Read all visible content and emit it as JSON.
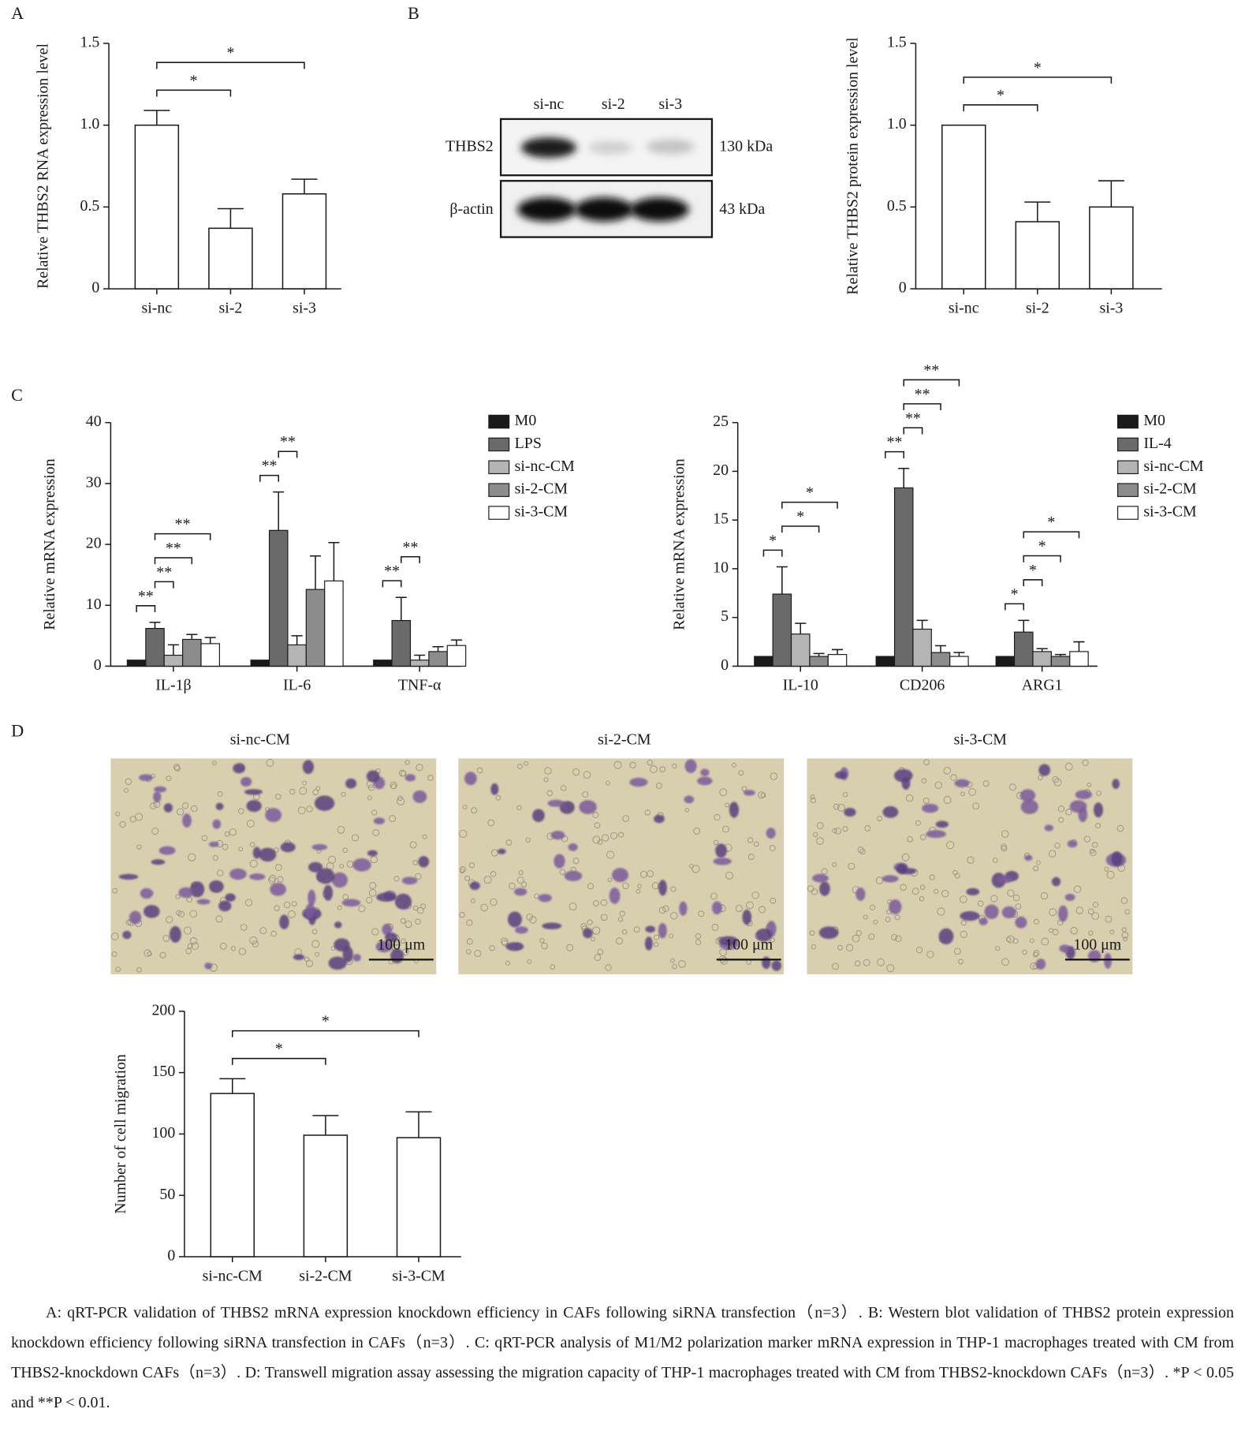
{
  "panels": [
    "A",
    "B",
    "C",
    "D"
  ],
  "blot": {
    "lanes": [
      "si-nc",
      "si-2",
      "si-3"
    ],
    "rows": [
      {
        "label": "THBS2",
        "size": "130 kDa"
      },
      {
        "label": "β-actin",
        "size": "43 kDa"
      }
    ]
  },
  "micrographs": {
    "panels": [
      "si-nc-CM",
      "si-2-CM",
      "si-3-CM"
    ],
    "scale_bar": "100 μm"
  },
  "caption": "A: qRT-PCR validation of THBS2 mRNA expression knockdown efficiency in CAFs following siRNA transfection（n=3）. B: Western blot validation of THBS2 protein expression knockdown efficiency following siRNA transfection in CAFs（n=3）. C: qRT-PCR analysis of M1/M2 polarization marker mRNA expression in THP-1 macrophages treated with CM from THBS2-knockdown CAFs（n=3）. D: Transwell migration assay assessing the migration capacity of THP-1 macrophages treated with CM from THBS2-knockdown CAFs（n=3）. *P < 0.05 and **P < 0.01.",
  "chart_data": [
    {
      "type": "bar",
      "ylabel": "Relative THBS2 RNA expression level",
      "categories": [
        "si-nc",
        "si-2",
        "si-3"
      ],
      "values": [
        1.0,
        0.37,
        0.58
      ],
      "errors": [
        0.09,
        0.12,
        0.09
      ],
      "color": "#ffffff",
      "ylim": [
        0,
        1.5
      ],
      "yticks": [
        0,
        0.5,
        {
          "value": 1,
          "label": "1.0"
        },
        1.5
      ],
      "significance": [
        {
          "between": [
            "si-nc",
            "si-2"
          ],
          "label": "*"
        },
        {
          "between": [
            "si-nc",
            "si-3"
          ],
          "label": "*"
        }
      ]
    },
    {
      "type": "bar",
      "ylabel": "Relative THBS2 protein expression level",
      "categories": [
        "si-nc",
        "si-2",
        "si-3"
      ],
      "values": [
        1.0,
        0.41,
        0.5
      ],
      "errors": [
        0,
        0.12,
        0.16
      ],
      "color": "#ffffff",
      "ylim": [
        0,
        1.5
      ],
      "yticks": [
        0,
        0.5,
        {
          "value": 1,
          "label": "1.0"
        },
        1.5
      ],
      "significance": [
        {
          "between": [
            "si-nc",
            "si-2"
          ],
          "label": "*"
        },
        {
          "between": [
            "si-nc",
            "si-3"
          ],
          "label": "*"
        }
      ]
    },
    {
      "type": "bar",
      "ylabel": "Relative mRNA expression",
      "categories": [
        "IL-1β",
        "IL-6",
        "TNF-α"
      ],
      "series": [
        {
          "name": "M0",
          "color": "#1a1a1a",
          "values": [
            1,
            1,
            1
          ],
          "errors": [
            0,
            0,
            0
          ]
        },
        {
          "name": "LPS",
          "color": "#6a6a6a",
          "values": [
            6.2,
            22.3,
            7.5
          ],
          "errors": [
            1,
            6.3,
            3.8
          ]
        },
        {
          "name": "si-nc-CM",
          "color": "#b4b4b4",
          "values": [
            1.8,
            3.5,
            1
          ],
          "errors": [
            1.7,
            1.5,
            0.8
          ]
        },
        {
          "name": "si-2-CM",
          "color": "#8c8c8c",
          "values": [
            4.4,
            12.6,
            2.4
          ],
          "errors": [
            0.8,
            5.5,
            0.8
          ]
        },
        {
          "name": "si-3-CM",
          "color": "#ffffff",
          "values": [
            3.7,
            14,
            3.4
          ],
          "errors": [
            1,
            6.3,
            0.9
          ]
        }
      ],
      "ylim": [
        0,
        40
      ],
      "yticks": [
        0,
        10,
        20,
        30,
        40
      ],
      "significance": [
        {
          "category": "IL-1β",
          "between": [
            "M0",
            "LPS"
          ],
          "label": "**"
        },
        {
          "category": "IL-1β",
          "between": [
            "LPS",
            "si-nc-CM"
          ],
          "label": "**"
        },
        {
          "category": "IL-1β",
          "between": [
            "LPS",
            "si-2-CM"
          ],
          "label": "**"
        },
        {
          "category": "IL-1β",
          "between": [
            "LPS",
            "si-3-CM"
          ],
          "label": "**"
        },
        {
          "category": "IL-6",
          "between": [
            "M0",
            "LPS"
          ],
          "label": "**"
        },
        {
          "category": "IL-6",
          "between": [
            "LPS",
            "si-nc-CM"
          ],
          "label": "**"
        },
        {
          "category": "TNF-α",
          "between": [
            "M0",
            "LPS"
          ],
          "label": "**"
        },
        {
          "category": "TNF-α",
          "between": [
            "LPS",
            "si-nc-CM"
          ],
          "label": "**"
        }
      ]
    },
    {
      "type": "bar",
      "ylabel": "Relative mRNA expression",
      "categories": [
        "IL-10",
        "CD206",
        "ARG1"
      ],
      "series": [
        {
          "name": "M0",
          "color": "#1a1a1a",
          "values": [
            1,
            1,
            1
          ],
          "errors": [
            0,
            0,
            0
          ]
        },
        {
          "name": "IL-4",
          "color": "#6a6a6a",
          "values": [
            7.4,
            18.3,
            3.5
          ],
          "errors": [
            2.8,
            2,
            1.2
          ]
        },
        {
          "name": "si-nc-CM",
          "color": "#b4b4b4",
          "values": [
            3.3,
            3.8,
            1.5
          ],
          "errors": [
            1.1,
            0.9,
            0.3
          ]
        },
        {
          "name": "si-2-CM",
          "color": "#8c8c8c",
          "values": [
            1,
            1.4,
            1
          ],
          "errors": [
            0.3,
            0.7,
            0.2
          ]
        },
        {
          "name": "si-3-CM",
          "color": "#ffffff",
          "values": [
            1.2,
            1,
            1.5
          ],
          "errors": [
            0.5,
            0.4,
            1
          ]
        }
      ],
      "ylim": [
        0,
        25
      ],
      "yticks": [
        0,
        5,
        10,
        15,
        20,
        25
      ],
      "significance": [
        {
          "category": "IL-10",
          "between": [
            "M0",
            "IL-4"
          ],
          "label": "*"
        },
        {
          "category": "IL-10",
          "between": [
            "IL-4",
            "si-2-CM"
          ],
          "label": "*"
        },
        {
          "category": "IL-10",
          "between": [
            "IL-4",
            "si-3-CM"
          ],
          "label": "*"
        },
        {
          "category": "CD206",
          "between": [
            "M0",
            "IL-4"
          ],
          "label": "**"
        },
        {
          "category": "CD206",
          "between": [
            "IL-4",
            "si-nc-CM"
          ],
          "label": "**"
        },
        {
          "category": "CD206",
          "between": [
            "IL-4",
            "si-2-CM"
          ],
          "label": "**"
        },
        {
          "category": "CD206",
          "between": [
            "IL-4",
            "si-3-CM"
          ],
          "label": "**"
        },
        {
          "category": "ARG1",
          "between": [
            "M0",
            "IL-4"
          ],
          "label": "*"
        },
        {
          "category": "ARG1",
          "between": [
            "IL-4",
            "si-nc-CM"
          ],
          "label": "*"
        },
        {
          "category": "ARG1",
          "between": [
            "IL-4",
            "si-2-CM"
          ],
          "label": "*"
        },
        {
          "category": "ARG1",
          "between": [
            "IL-4",
            "si-3-CM"
          ],
          "label": "*"
        }
      ]
    },
    {
      "type": "bar",
      "ylabel": "Number of cell migration",
      "categories": [
        "si-nc-CM",
        "si-2-CM",
        "si-3-CM"
      ],
      "values": [
        133,
        99,
        97
      ],
      "errors": [
        12,
        16,
        21
      ],
      "color": "#ffffff",
      "ylim": [
        0,
        200
      ],
      "yticks": [
        0,
        50,
        100,
        150,
        200
      ],
      "significance": [
        {
          "between": [
            "si-nc-CM",
            "si-2-CM"
          ],
          "label": "*"
        },
        {
          "between": [
            "si-nc-CM",
            "si-3-CM"
          ],
          "label": "*"
        }
      ]
    }
  ]
}
